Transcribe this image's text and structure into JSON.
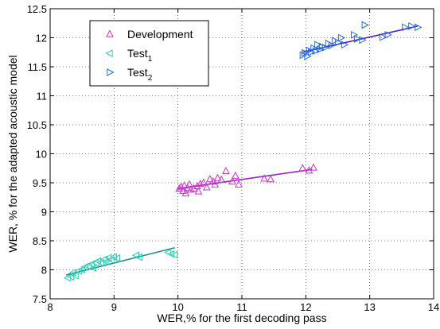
{
  "chart_data": {
    "type": "scatter",
    "title": "",
    "xlabel": "WER,% for the first decoding pass",
    "ylabel": "WER, % for the adapted acoustic model",
    "xlim": [
      8,
      14
    ],
    "ylim": [
      7.5,
      12.5
    ],
    "xticks": [
      "8",
      "9",
      "10",
      "11",
      "12",
      "13",
      "14"
    ],
    "yticks": [
      "7.5",
      "8",
      "8.5",
      "9",
      "9.5",
      "10",
      "10.5",
      "11",
      "11.5",
      "12",
      "12.5"
    ],
    "grid": true,
    "legend_position": "top-left",
    "legend": [
      {
        "label": "Development",
        "sub": ""
      },
      {
        "label": "Test",
        "sub": "1"
      },
      {
        "label": "Test",
        "sub": "2"
      }
    ],
    "series": [
      {
        "name": "Development",
        "marker": "triangle-up",
        "color": "#cc33cc",
        "points": [
          [
            10.02,
            9.4
          ],
          [
            10.05,
            9.43
          ],
          [
            10.08,
            9.36
          ],
          [
            10.1,
            9.45
          ],
          [
            10.12,
            9.32
          ],
          [
            10.15,
            9.41
          ],
          [
            10.18,
            9.47
          ],
          [
            10.2,
            9.38
          ],
          [
            10.25,
            9.4
          ],
          [
            10.3,
            9.44
          ],
          [
            10.32,
            9.35
          ],
          [
            10.35,
            9.48
          ],
          [
            10.4,
            9.5
          ],
          [
            10.45,
            9.42
          ],
          [
            10.5,
            9.56
          ],
          [
            10.55,
            9.52
          ],
          [
            10.58,
            9.47
          ],
          [
            10.62,
            9.58
          ],
          [
            10.68,
            9.55
          ],
          [
            10.75,
            9.7
          ],
          [
            10.85,
            9.52
          ],
          [
            10.9,
            9.62
          ],
          [
            10.95,
            9.47
          ],
          [
            11.35,
            9.57
          ],
          [
            11.45,
            9.56
          ],
          [
            11.95,
            9.75
          ],
          [
            12.05,
            9.71
          ],
          [
            12.12,
            9.76
          ]
        ],
        "fit": [
          [
            10.0,
            9.4
          ],
          [
            12.1,
            9.73
          ]
        ],
        "fit_color": "#a020c8"
      },
      {
        "name": "Test1",
        "marker": "triangle-left",
        "color": "#33ccb0",
        "points": [
          [
            8.28,
            7.86
          ],
          [
            8.33,
            7.88
          ],
          [
            8.36,
            7.95
          ],
          [
            8.4,
            7.9
          ],
          [
            8.45,
            7.98
          ],
          [
            8.5,
            8.0
          ],
          [
            8.55,
            8.05
          ],
          [
            8.6,
            8.06
          ],
          [
            8.65,
            8.1
          ],
          [
            8.68,
            8.03
          ],
          [
            8.72,
            8.12
          ],
          [
            8.75,
            8.15
          ],
          [
            8.8,
            8.12
          ],
          [
            8.85,
            8.18
          ],
          [
            8.88,
            8.14
          ],
          [
            8.92,
            8.21
          ],
          [
            8.96,
            8.17
          ],
          [
            9.0,
            8.22
          ],
          [
            9.05,
            8.2
          ],
          [
            9.35,
            8.25
          ],
          [
            9.4,
            8.22
          ],
          [
            9.85,
            8.3
          ],
          [
            9.9,
            8.27
          ],
          [
            9.95,
            8.26
          ]
        ],
        "fit": [
          [
            8.25,
            7.91
          ],
          [
            9.95,
            8.38
          ]
        ],
        "fit_color": "#1f8f8a"
      },
      {
        "name": "Test2",
        "marker": "triangle-right",
        "color": "#1a6fe6",
        "points": [
          [
            11.95,
            11.7
          ],
          [
            11.98,
            11.74
          ],
          [
            12.02,
            11.68
          ],
          [
            12.05,
            11.78
          ],
          [
            12.08,
            11.75
          ],
          [
            12.12,
            11.82
          ],
          [
            12.15,
            11.77
          ],
          [
            12.18,
            11.88
          ],
          [
            12.22,
            11.8
          ],
          [
            12.25,
            11.85
          ],
          [
            12.3,
            11.83
          ],
          [
            12.35,
            11.9
          ],
          [
            12.4,
            11.87
          ],
          [
            12.45,
            11.95
          ],
          [
            12.5,
            11.92
          ],
          [
            12.55,
            12.0
          ],
          [
            12.6,
            11.88
          ],
          [
            12.75,
            12.05
          ],
          [
            12.8,
            11.98
          ],
          [
            12.88,
            11.96
          ],
          [
            12.92,
            12.22
          ],
          [
            13.2,
            12.01
          ],
          [
            13.28,
            12.05
          ],
          [
            13.55,
            12.18
          ],
          [
            13.65,
            12.2
          ],
          [
            13.75,
            12.18
          ]
        ],
        "fit": [
          [
            11.95,
            11.75
          ],
          [
            13.75,
            12.2
          ]
        ],
        "fit_color": "#5018c8"
      }
    ]
  }
}
